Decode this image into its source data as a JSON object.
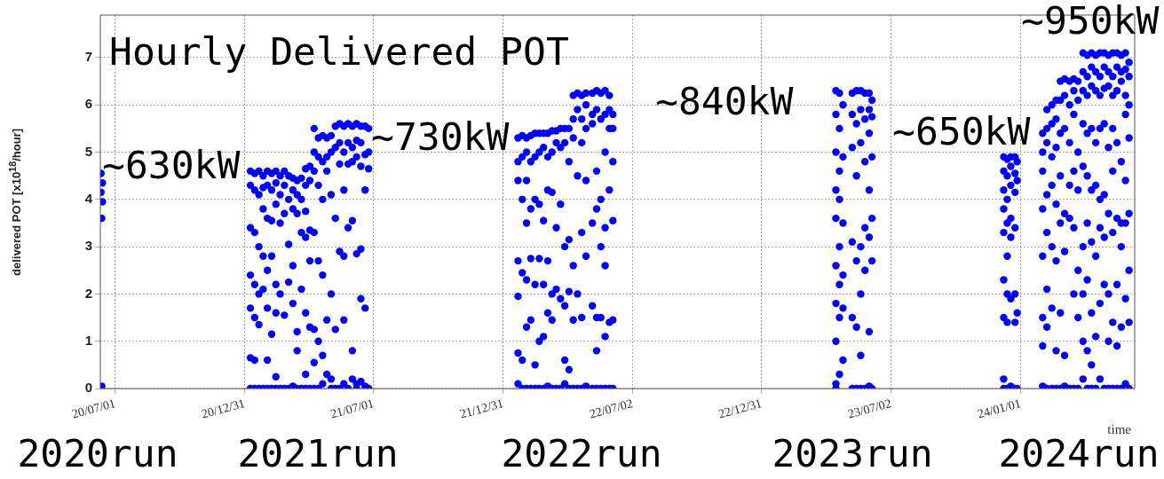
{
  "chart_data": {
    "type": "scatter",
    "title": "Hourly Delivered POT",
    "xlabel": "time",
    "ylabel": "delivered POT [x10$^{18}$/hour]",
    "xlim": [
      "2020-06-10",
      "2024-06-10"
    ],
    "xticks": [
      {
        "value": "2020-07-01",
        "label": "20/07/01"
      },
      {
        "value": "2020-12-31",
        "label": "20/12/31"
      },
      {
        "value": "2021-07-01",
        "label": "21/07/01"
      },
      {
        "value": "2021-12-31",
        "label": "21/12/31"
      },
      {
        "value": "2022-07-02",
        "label": "22/07/02"
      },
      {
        "value": "2022-12-31",
        "label": "22/12/31"
      },
      {
        "value": "2023-07-02",
        "label": "23/07/02"
      },
      {
        "value": "2024-01-01",
        "label": "24/01/01"
      }
    ],
    "ylim": [
      0,
      7.9
    ],
    "yticks": [
      0,
      1,
      2,
      3,
      4,
      5,
      6,
      7
    ],
    "grid": true,
    "marker": "circle",
    "series": [
      {
        "color": "#0000ff",
        "x": [
          "2020-06-11",
          "2020-06-13",
          "2020-06-11",
          "2020-06-13",
          "2020-06-12",
          "2020-06-12"
        ],
        "values": [
          4.55,
          4.35,
          4.15,
          3.95,
          3.6,
          0.05
        ]
      },
      {
        "color": "#0000ff",
        "x": [
          "2021-01-08",
          "2021-01-08",
          "2021-01-08",
          "2021-01-08",
          "2021-01-08",
          "2021-01-08",
          "2021-01-08",
          "2021-01-14",
          "2021-01-14",
          "2021-01-14",
          "2021-01-14",
          "2021-01-14",
          "2021-01-14",
          "2021-01-14",
          "2021-01-20",
          "2021-01-20",
          "2021-01-20",
          "2021-01-20",
          "2021-01-20",
          "2021-01-20",
          "2021-01-26",
          "2021-01-26",
          "2021-01-26",
          "2021-01-26",
          "2021-01-26",
          "2021-01-26",
          "2021-02-01",
          "2021-02-01",
          "2021-02-01",
          "2021-02-01",
          "2021-02-01",
          "2021-02-01",
          "2021-02-01",
          "2021-02-07",
          "2021-02-07",
          "2021-02-07",
          "2021-02-07",
          "2021-02-07",
          "2021-02-07",
          "2021-02-13",
          "2021-02-13",
          "2021-02-13",
          "2021-02-13",
          "2021-02-13",
          "2021-02-13",
          "2021-02-13",
          "2021-02-19",
          "2021-02-19",
          "2021-02-19",
          "2021-02-19",
          "2021-02-19",
          "2021-02-25",
          "2021-02-25",
          "2021-02-25",
          "2021-02-25",
          "2021-02-25",
          "2021-03-03",
          "2021-03-03",
          "2021-03-03",
          "2021-03-03",
          "2021-03-03",
          "2021-03-09",
          "2021-03-09",
          "2021-03-09",
          "2021-03-09",
          "2021-03-09",
          "2021-03-09",
          "2021-03-15",
          "2021-03-15",
          "2021-03-15",
          "2021-03-15",
          "2021-03-15",
          "2021-03-15",
          "2021-03-21",
          "2021-03-21",
          "2021-03-21",
          "2021-03-21",
          "2021-03-21",
          "2021-03-27",
          "2021-03-27",
          "2021-03-27",
          "2021-03-27",
          "2021-03-27",
          "2021-03-27",
          "2021-03-27",
          "2021-04-02",
          "2021-04-02",
          "2021-04-02",
          "2021-04-02",
          "2021-04-02",
          "2021-04-02"
        ],
        "values": [
          4.6,
          4.3,
          3.4,
          2.4,
          1.7,
          0.65,
          0,
          4.55,
          4.2,
          3.3,
          2.2,
          1.5,
          0.6,
          0,
          4.6,
          4.1,
          3.0,
          2.0,
          1.35,
          0,
          4.5,
          4.25,
          3.8,
          2.8,
          2.1,
          0,
          4.6,
          4.3,
          3.6,
          2.5,
          1.7,
          0.6,
          0,
          4.55,
          4.2,
          3.55,
          2.8,
          1.15,
          0,
          4.6,
          4.35,
          3.9,
          2.2,
          1.6,
          0.25,
          0,
          4.5,
          4.1,
          3.5,
          2.0,
          0,
          4.6,
          4.3,
          3.7,
          1.55,
          0,
          4.5,
          4.0,
          3.05,
          2.25,
          0,
          4.45,
          4.2,
          3.8,
          2.6,
          1.8,
          0.05,
          4.4,
          4.1,
          3.7,
          1.2,
          0.8,
          0,
          4.45,
          4.0,
          3.3,
          2.1,
          0,
          4.65,
          4.3,
          3.75,
          3.2,
          1.6,
          0.3,
          0,
          4.7,
          4.4,
          3.35,
          2.7,
          1.3,
          0
        ]
      },
      {
        "color": "#0000ff",
        "x": [
          "2021-04-08",
          "2021-04-08",
          "2021-04-08",
          "2021-04-08",
          "2021-04-08",
          "2021-04-08",
          "2021-04-08",
          "2021-04-14",
          "2021-04-14",
          "2021-04-14",
          "2021-04-14",
          "2021-04-14",
          "2021-04-14",
          "2021-04-20",
          "2021-04-20",
          "2021-04-20",
          "2021-04-20",
          "2021-04-20",
          "2021-04-20",
          "2021-04-26",
          "2021-04-26",
          "2021-04-26",
          "2021-04-26",
          "2021-04-26",
          "2021-05-02",
          "2021-05-02",
          "2021-05-02",
          "2021-05-02",
          "2021-05-02",
          "2021-05-02",
          "2021-05-08",
          "2021-05-08",
          "2021-05-08",
          "2021-05-08",
          "2021-05-08",
          "2021-05-14",
          "2021-05-14",
          "2021-05-14",
          "2021-05-14",
          "2021-05-14",
          "2021-05-20",
          "2021-05-20",
          "2021-05-20",
          "2021-05-20",
          "2021-05-20",
          "2021-05-20",
          "2021-05-26",
          "2021-05-26",
          "2021-05-26",
          "2021-05-26",
          "2021-05-26",
          "2021-06-01",
          "2021-06-01",
          "2021-06-01",
          "2021-06-01",
          "2021-06-01",
          "2021-06-01",
          "2021-06-07",
          "2021-06-07",
          "2021-06-07",
          "2021-06-07",
          "2021-06-07",
          "2021-06-07",
          "2021-06-13",
          "2021-06-13",
          "2021-06-13",
          "2021-06-13",
          "2021-06-13",
          "2021-06-13",
          "2021-06-19",
          "2021-06-19",
          "2021-06-19",
          "2021-06-19",
          "2021-06-19",
          "2021-06-24",
          "2021-06-24",
          "2021-06-24",
          "2021-06-24"
        ],
        "values": [
          5.5,
          5.0,
          4.6,
          3.3,
          1.25,
          0.55,
          0,
          5.3,
          4.9,
          4.3,
          2.7,
          1.0,
          0,
          5.35,
          4.8,
          4.0,
          2.4,
          0.7,
          0.1,
          5.3,
          4.9,
          4.6,
          1.45,
          0.3,
          5.35,
          5.0,
          4.1,
          2.0,
          0.2,
          0,
          5.55,
          5.1,
          3.6,
          1.25,
          0,
          5.6,
          5.2,
          4.75,
          2.9,
          0,
          5.55,
          5.0,
          4.2,
          2.8,
          1.45,
          0.1,
          5.6,
          5.2,
          4.75,
          3.4,
          0,
          5.55,
          5.1,
          4.8,
          3.55,
          0.8,
          0.2,
          5.6,
          5.25,
          4.9,
          2.85,
          0.1,
          0,
          5.55,
          5.2,
          4.7,
          2.95,
          1.9,
          0.15,
          5.55,
          4.95,
          4.2,
          1.7,
          0.05,
          5.5,
          5.0,
          4.65,
          0
        ]
      },
      {
        "color": "#0000ff",
        "x": [
          "2022-01-21",
          "2022-01-21",
          "2022-01-21",
          "2022-01-21",
          "2022-01-21",
          "2022-01-21",
          "2022-01-21",
          "2022-01-27",
          "2022-01-27",
          "2022-01-27",
          "2022-01-27",
          "2022-01-27",
          "2022-01-27",
          "2022-02-02",
          "2022-02-02",
          "2022-02-02",
          "2022-02-02",
          "2022-02-02",
          "2022-02-02",
          "2022-02-02",
          "2022-02-08",
          "2022-02-08",
          "2022-02-08",
          "2022-02-08",
          "2022-02-08",
          "2022-02-08",
          "2022-02-14",
          "2022-02-14",
          "2022-02-14",
          "2022-02-14",
          "2022-02-14",
          "2022-02-14",
          "2022-02-20",
          "2022-02-20",
          "2022-02-20",
          "2022-02-20",
          "2022-02-20",
          "2022-02-20",
          "2022-02-26",
          "2022-02-26",
          "2022-02-26",
          "2022-02-26",
          "2022-02-26",
          "2022-02-26",
          "2022-03-04",
          "2022-03-04",
          "2022-03-04",
          "2022-03-04",
          "2022-03-04",
          "2022-03-04",
          "2022-03-10",
          "2022-03-10",
          "2022-03-10",
          "2022-03-10",
          "2022-03-10",
          "2022-03-10",
          "2022-03-16",
          "2022-03-16",
          "2022-03-16",
          "2022-03-16",
          "2022-03-16",
          "2022-03-22",
          "2022-03-22",
          "2022-03-22",
          "2022-03-22",
          "2022-03-22",
          "2022-03-28",
          "2022-03-28",
          "2022-03-28",
          "2022-03-28",
          "2022-03-28",
          "2022-03-28",
          "2022-04-03",
          "2022-04-03",
          "2022-04-03",
          "2022-04-03",
          "2022-04-03",
          "2022-04-03"
        ],
        "values": [
          5.3,
          4.8,
          4.4,
          2.7,
          1.95,
          0.75,
          0.1,
          5.35,
          4.9,
          4.0,
          2.45,
          0.6,
          0,
          5.3,
          5.0,
          4.4,
          3.5,
          2.3,
          1.3,
          0,
          5.35,
          4.8,
          3.8,
          2.75,
          1.45,
          0,
          5.4,
          4.9,
          4.0,
          2.2,
          0.5,
          0,
          5.4,
          5.0,
          3.9,
          2.75,
          1.0,
          0,
          5.4,
          5.1,
          3.55,
          2.2,
          1.1,
          0,
          5.4,
          4.9,
          4.2,
          2.7,
          1.6,
          0.05,
          5.45,
          5.0,
          4.15,
          2.0,
          1.45,
          0,
          5.45,
          5.2,
          3.4,
          2.1,
          0,
          5.5,
          5.1,
          3.9,
          1.9,
          0,
          5.5,
          5.2,
          3.0,
          1.75,
          0.6,
          0.1,
          5.5,
          4.8,
          3.15,
          2.05,
          0.4,
          0
        ]
      },
      {
        "color": "#0000ff",
        "x": [
          "2022-04-09",
          "2022-04-09",
          "2022-04-09",
          "2022-04-09",
          "2022-04-09",
          "2022-04-09",
          "2022-04-15",
          "2022-04-15",
          "2022-04-15",
          "2022-04-15",
          "2022-04-15",
          "2022-04-21",
          "2022-04-21",
          "2022-04-21",
          "2022-04-21",
          "2022-04-21",
          "2022-04-21",
          "2022-04-27",
          "2022-04-27",
          "2022-04-27",
          "2022-04-27",
          "2022-04-27",
          "2022-04-27",
          "2022-05-06",
          "2022-05-06",
          "2022-05-06",
          "2022-05-06",
          "2022-05-06",
          "2022-05-06",
          "2022-05-12",
          "2022-05-12",
          "2022-05-12",
          "2022-05-12",
          "2022-05-12",
          "2022-05-12",
          "2022-05-12",
          "2022-05-18",
          "2022-05-18",
          "2022-05-18",
          "2022-05-18",
          "2022-05-18",
          "2022-05-18",
          "2022-05-24",
          "2022-05-24",
          "2022-05-24",
          "2022-05-24",
          "2022-05-24",
          "2022-05-24",
          "2022-05-24",
          "2022-05-30",
          "2022-05-30",
          "2022-05-30",
          "2022-05-30",
          "2022-05-30",
          "2022-05-30",
          "2022-06-04",
          "2022-06-04",
          "2022-06-04",
          "2022-06-04",
          "2022-06-04",
          "2022-06-04"
        ],
        "values": [
          6.2,
          5.7,
          5.3,
          2.6,
          1.45,
          0,
          6.25,
          5.9,
          4.5,
          2.0,
          0,
          6.2,
          5.7,
          5.2,
          3.3,
          1.5,
          0,
          6.25,
          6.0,
          5.5,
          4.4,
          2.8,
          0.05,
          6.25,
          5.8,
          5.6,
          3.5,
          1.75,
          0,
          6.3,
          5.9,
          4.6,
          3.8,
          1.5,
          0.8,
          0,
          6.25,
          5.7,
          4.0,
          3.0,
          1.5,
          0,
          6.3,
          5.8,
          5.0,
          3.4,
          2.6,
          1.1,
          0,
          6.2,
          5.9,
          5.5,
          4.2,
          1.4,
          0,
          5.8,
          5.5,
          4.8,
          3.55,
          1.45,
          0
        ]
      },
      {
        "color": "#0000ff",
        "x": [
          "2023-04-15",
          "2023-04-15",
          "2023-04-15",
          "2023-04-15",
          "2023-04-15",
          "2023-04-15",
          "2023-04-15",
          "2023-04-15",
          "2023-04-15",
          "2023-04-15",
          "2023-04-20",
          "2023-04-20",
          "2023-04-20",
          "2023-04-20",
          "2023-04-20",
          "2023-04-20",
          "2023-04-20",
          "2023-04-20",
          "2023-04-25",
          "2023-04-25",
          "2023-04-25",
          "2023-04-25",
          "2023-04-25",
          "2023-04-25",
          "2023-05-08",
          "2023-05-08",
          "2023-05-08",
          "2023-05-08",
          "2023-05-08",
          "2023-05-08",
          "2023-05-14",
          "2023-05-14",
          "2023-05-14",
          "2023-05-14",
          "2023-05-14",
          "2023-05-14",
          "2023-05-20",
          "2023-05-20",
          "2023-05-20",
          "2023-05-20",
          "2023-05-20",
          "2023-05-20",
          "2023-05-20",
          "2023-05-26",
          "2023-05-26",
          "2023-05-26",
          "2023-05-26",
          "2023-05-26",
          "2023-05-26",
          "2023-06-01",
          "2023-06-01",
          "2023-06-01",
          "2023-06-01",
          "2023-06-01",
          "2023-06-01",
          "2023-06-01",
          "2023-06-05",
          "2023-06-05",
          "2023-06-05",
          "2023-06-05",
          "2023-06-05",
          "2023-06-05"
        ],
        "values": [
          6.3,
          5.8,
          5.0,
          4.2,
          3.6,
          2.6,
          1.8,
          1.0,
          0.1,
          0,
          6.25,
          5.5,
          4.6,
          4.0,
          3.0,
          2.2,
          1.5,
          0.3,
          6.0,
          4.9,
          3.5,
          2.4,
          1.7,
          0.6,
          6.25,
          5.8,
          5.1,
          3.1,
          1.5,
          0,
          6.3,
          5.6,
          4.5,
          2.7,
          1.3,
          0,
          6.3,
          5.9,
          5.2,
          3.0,
          2.0,
          0.7,
          0,
          6.25,
          5.7,
          4.8,
          3.4,
          2.5,
          0,
          6.25,
          5.9,
          5.4,
          4.2,
          3.2,
          1.2,
          0.05,
          6.1,
          5.75,
          4.9,
          3.6,
          2.7,
          0
        ]
      },
      {
        "color": "#0000ff",
        "x": [
          "2023-12-08",
          "2023-12-08",
          "2023-12-08",
          "2023-12-08",
          "2023-12-08",
          "2023-12-08",
          "2023-12-08",
          "2023-12-08",
          "2023-12-08",
          "2023-12-13",
          "2023-12-13",
          "2023-12-13",
          "2023-12-13",
          "2023-12-13",
          "2023-12-13",
          "2023-12-13",
          "2023-12-13",
          "2023-12-18",
          "2023-12-18",
          "2023-12-18",
          "2023-12-18",
          "2023-12-18",
          "2023-12-18",
          "2023-12-18",
          "2023-12-24",
          "2023-12-24",
          "2023-12-24",
          "2023-12-24",
          "2023-12-24",
          "2023-12-24",
          "2023-12-24",
          "2023-12-27",
          "2023-12-27",
          "2023-12-27",
          "2023-12-27"
        ],
        "values": [
          4.9,
          4.6,
          4.2,
          3.8,
          3.3,
          2.3,
          1.5,
          0.2,
          0,
          4.85,
          4.5,
          4.0,
          3.5,
          2.8,
          2.0,
          1.4,
          0,
          4.9,
          4.7,
          4.3,
          3.6,
          3.2,
          1.9,
          0.05,
          4.9,
          4.55,
          4.15,
          3.4,
          2.0,
          1.4,
          0,
          4.8,
          4.4,
          1.6,
          0
        ]
      },
      {
        "color": "#0000ff",
        "x": [
          "2024-02-01",
          "2024-02-01",
          "2024-02-01",
          "2024-02-01",
          "2024-02-01",
          "2024-02-01",
          "2024-02-01",
          "2024-02-01",
          "2024-02-07",
          "2024-02-07",
          "2024-02-07",
          "2024-02-07",
          "2024-02-07",
          "2024-02-07",
          "2024-02-07",
          "2024-02-07",
          "2024-02-14",
          "2024-02-14",
          "2024-02-14",
          "2024-02-14",
          "2024-02-14",
          "2024-02-14",
          "2024-02-14",
          "2024-02-20",
          "2024-02-20",
          "2024-02-20",
          "2024-02-20",
          "2024-02-20",
          "2024-02-20",
          "2024-02-20",
          "2024-02-26",
          "2024-02-26",
          "2024-02-26",
          "2024-02-26",
          "2024-02-26",
          "2024-02-26",
          "2024-02-26",
          "2024-03-03",
          "2024-03-03",
          "2024-03-03",
          "2024-03-03",
          "2024-03-03",
          "2024-03-03",
          "2024-03-03",
          "2024-03-10",
          "2024-03-10",
          "2024-03-10",
          "2024-03-10",
          "2024-03-10",
          "2024-03-10",
          "2024-03-16",
          "2024-03-16",
          "2024-03-16",
          "2024-03-16",
          "2024-03-16",
          "2024-03-16",
          "2024-03-16",
          "2024-03-22",
          "2024-03-22",
          "2024-03-22",
          "2024-03-22",
          "2024-03-22",
          "2024-03-22",
          "2024-03-22"
        ],
        "values": [
          5.4,
          5.0,
          4.6,
          3.8,
          2.8,
          1.5,
          0.9,
          0.05,
          5.9,
          5.5,
          5.2,
          4.1,
          3.3,
          2.1,
          1.3,
          0,
          6.0,
          5.6,
          4.9,
          4.3,
          3.0,
          1.7,
          0,
          6.1,
          5.7,
          5.1,
          3.9,
          2.7,
          0.8,
          0,
          6.5,
          6.1,
          5.4,
          4.5,
          3.5,
          1.6,
          0,
          6.55,
          6.2,
          5.5,
          3.7,
          2.9,
          0.7,
          0.05,
          6.5,
          6.0,
          5.2,
          4.3,
          3.6,
          0,
          6.55,
          6.3,
          5.8,
          4.6,
          3.4,
          2.0,
          0,
          6.5,
          6.1,
          5.0,
          4.2,
          2.5,
          1.5,
          0
        ]
      },
      {
        "color": "#0000ff",
        "x": [
          "2024-03-29",
          "2024-03-29",
          "2024-03-29",
          "2024-03-29",
          "2024-03-29",
          "2024-03-29",
          "2024-03-29",
          "2024-03-29",
          "2024-03-29",
          "2024-04-04",
          "2024-04-04",
          "2024-04-04",
          "2024-04-04",
          "2024-04-04",
          "2024-04-04",
          "2024-04-04",
          "2024-04-04",
          "2024-04-04",
          "2024-04-10",
          "2024-04-10",
          "2024-04-10",
          "2024-04-10",
          "2024-04-10",
          "2024-04-10",
          "2024-04-10",
          "2024-04-10",
          "2024-04-10",
          "2024-04-16",
          "2024-04-16",
          "2024-04-16",
          "2024-04-16",
          "2024-04-16",
          "2024-04-16",
          "2024-04-16",
          "2024-04-16",
          "2024-04-22",
          "2024-04-22",
          "2024-04-22",
          "2024-04-22",
          "2024-04-22",
          "2024-04-22",
          "2024-04-22",
          "2024-04-22",
          "2024-04-28",
          "2024-04-28",
          "2024-04-28",
          "2024-04-28",
          "2024-04-28",
          "2024-04-28",
          "2024-04-28",
          "2024-04-28",
          "2024-05-04",
          "2024-05-04",
          "2024-05-04",
          "2024-05-04",
          "2024-05-04",
          "2024-05-04",
          "2024-05-04",
          "2024-05-04",
          "2024-05-10",
          "2024-05-10",
          "2024-05-10",
          "2024-05-10",
          "2024-05-10",
          "2024-05-10",
          "2024-05-10",
          "2024-05-10",
          "2024-05-16",
          "2024-05-16",
          "2024-05-16",
          "2024-05-16",
          "2024-05-16",
          "2024-05-16",
          "2024-05-16",
          "2024-05-16",
          "2024-05-22",
          "2024-05-22",
          "2024-05-22",
          "2024-05-22",
          "2024-05-22",
          "2024-05-22",
          "2024-05-22",
          "2024-05-22",
          "2024-05-28",
          "2024-05-28",
          "2024-05-28",
          "2024-05-28",
          "2024-05-28",
          "2024-05-28",
          "2024-05-28",
          "2024-05-28",
          "2024-06-02",
          "2024-06-02",
          "2024-06-02",
          "2024-06-02",
          "2024-06-02",
          "2024-06-02",
          "2024-06-02",
          "2024-06-02"
        ],
        "values": [
          7.1,
          6.7,
          6.3,
          5.6,
          4.7,
          3.0,
          2.0,
          1.0,
          0.2,
          7.05,
          6.6,
          6.2,
          5.4,
          4.5,
          3.5,
          2.3,
          0.8,
          0,
          7.1,
          6.8,
          6.4,
          5.5,
          4.2,
          3.1,
          1.6,
          0.5,
          0,
          7.05,
          6.7,
          6.3,
          5.2,
          4.3,
          2.8,
          1.1,
          0,
          7.1,
          6.6,
          6.2,
          5.5,
          4.0,
          3.4,
          1.8,
          0.2,
          7.1,
          6.8,
          6.35,
          5.6,
          4.1,
          3.2,
          2.2,
          0,
          7.05,
          6.7,
          6.4,
          5.1,
          3.7,
          2.0,
          1.0,
          0,
          7.1,
          6.6,
          6.2,
          5.5,
          4.6,
          3.3,
          1.4,
          0,
          7.1,
          6.8,
          6.3,
          5.2,
          3.6,
          2.2,
          0.9,
          0,
          7.05,
          6.7,
          6.5,
          4.8,
          3.5,
          3.0,
          1.3,
          0,
          7.1,
          6.75,
          6.2,
          5.8,
          4.4,
          3.5,
          1.9,
          0.1,
          6.9,
          6.6,
          6.0,
          5.3,
          3.7,
          2.5,
          1.4,
          0
        ]
      }
    ],
    "annotations": [
      "~630kW",
      "~730kW",
      "~840kW",
      "~650kW",
      "~950kW",
      "2020run",
      "2021run",
      "2022run",
      "2023run",
      "2024run"
    ]
  }
}
